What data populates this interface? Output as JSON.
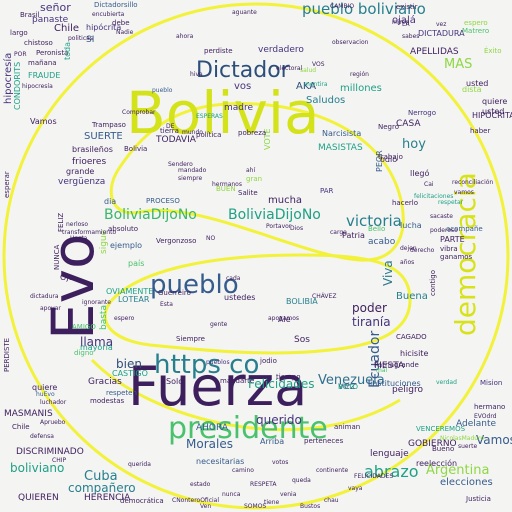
{
  "background_color": "#f4f4f2",
  "outline_color": "#f2f23a",
  "palette": {
    "dark_purple": "#3d1f5e",
    "purple": "#46337e",
    "blue": "#365c8d",
    "teal": "#277f8e",
    "green": "#1fa187",
    "lime": "#4ac16d",
    "yellow": "#d8e219"
  },
  "words": [
    {
      "text": "Bolivia",
      "color": "#d4e21a"
    },
    {
      "text": "Fuerza",
      "color": "#3d1f5e"
    },
    {
      "text": "Evo",
      "color": "#3d1f5e"
    },
    {
      "text": "presidente",
      "color": "#4ac16d"
    },
    {
      "text": "democracia",
      "color": "#d8e219"
    },
    {
      "text": "https co",
      "color": "#277f8e"
    },
    {
      "text": "pueblo",
      "color": "#365c8d"
    },
    {
      "text": "Dictador",
      "color": "#2c4e7a"
    },
    {
      "text": "BoliviaDijoNo",
      "color": "#3ab66d"
    },
    {
      "text": "BoliviaDijoNo",
      "color": "#1fa187"
    },
    {
      "text": "pueblo boliviano",
      "color": "#277f8e"
    },
    {
      "text": "Venezuela",
      "color": "#2e6e8e"
    },
    {
      "text": "Argentina",
      "color": "#8fd744"
    },
    {
      "text": "abrazo",
      "color": "#1fa187"
    },
    {
      "text": "victoria",
      "color": "#277f8e"
    },
    {
      "text": "Ecuador",
      "color": "#365c8d"
    },
    {
      "text": "Cuba",
      "color": "#277f8e"
    },
    {
      "text": "MAS",
      "color": "#8fd744"
    },
    {
      "text": "Vamos",
      "color": "#365c8d"
    },
    {
      "text": "querido",
      "color": "#46337e"
    },
    {
      "text": "boliviano",
      "color": "#1fa187"
    },
    {
      "text": "Morales",
      "color": "#365c8d"
    },
    {
      "text": "Felicidades",
      "color": "#1fa187"
    },
    {
      "text": "compañero",
      "color": "#277f8e"
    },
    {
      "text": "elecciones",
      "color": "#365c8d"
    },
    {
      "text": "tiranía",
      "color": "#46337e"
    },
    {
      "text": "poder",
      "color": "#3d1f5e"
    },
    {
      "text": "hoy",
      "color": "#277f8e"
    },
    {
      "text": "Viva",
      "color": "#2c7a8e"
    },
    {
      "text": "llama",
      "color": "#46337e"
    },
    {
      "text": "bien",
      "color": "#2c4e7a"
    },
    {
      "text": "señor",
      "color": "#46337e"
    },
    {
      "text": "SUERTE",
      "color": "#365c8d"
    },
    {
      "text": "AKA",
      "color": "#2c4e7a"
    },
    {
      "text": "vos",
      "color": "#46337e"
    },
    {
      "text": "mucha",
      "color": "#3d1f5e"
    },
    {
      "text": "Buena",
      "color": "#277f8e"
    },
    {
      "text": "Chile",
      "color": "#3d1f5e"
    },
    {
      "text": "ojalá",
      "color": "#46337e"
    },
    {
      "text": "vez",
      "color": "#365c8d"
    },
    {
      "text": "hipocresía",
      "color": "#46337e"
    },
    {
      "text": "Saludos",
      "color": "#277f8e"
    },
    {
      "text": "millones",
      "color": "#1fa187"
    },
    {
      "text": "APELLIDAS",
      "color": "#3d1f5e"
    },
    {
      "text": "DICTADURA",
      "color": "#46337e"
    },
    {
      "text": "CASA",
      "color": "#3d1f5e"
    },
    {
      "text": "madre",
      "color": "#46337e"
    },
    {
      "text": "verdadero",
      "color": "#46337e"
    },
    {
      "text": "MASISTAS",
      "color": "#1fa187"
    },
    {
      "text": "TODAVIA",
      "color": "#3d1f5e"
    },
    {
      "text": "brasileños",
      "color": "#3d1f5e"
    },
    {
      "text": "vergüenza",
      "color": "#46337e"
    },
    {
      "text": "HERENCIA",
      "color": "#3d1f5e"
    },
    {
      "text": "QUIEREN",
      "color": "#3d1f5e"
    },
    {
      "text": "DISCRIMINADO",
      "color": "#3d1f5e"
    },
    {
      "text": "MASMANIS",
      "color": "#3d1f5e"
    },
    {
      "text": "Gracias",
      "color": "#3d1f5e"
    },
    {
      "text": "mayoría",
      "color": "#1fa187"
    },
    {
      "text": "AHORA",
      "color": "#365c8d"
    },
    {
      "text": "Adelante",
      "color": "#365c8d"
    },
    {
      "text": "FIESTA",
      "color": "#3d1f5e"
    },
    {
      "text": "GOBIERNO",
      "color": "#3d1f5e"
    },
    {
      "text": "lenguaje",
      "color": "#3d1f5e"
    },
    {
      "text": "instituciones",
      "color": "#365c8d"
    },
    {
      "text": "Sos",
      "color": "#3d1f5e"
    },
    {
      "text": "SI",
      "color": "#365c8d"
    },
    {
      "text": "sigue",
      "color": "#8fd744"
    },
    {
      "text": "país",
      "color": "#4ac16d"
    },
    {
      "text": "acabo",
      "color": "#365c8d"
    },
    {
      "text": "lucha",
      "color": "#365c8d"
    },
    {
      "text": "PARTE",
      "color": "#3d1f5e"
    },
    {
      "text": "absoluto",
      "color": "#3d1f5e"
    },
    {
      "text": "ejemplo",
      "color": "#365c8d"
    },
    {
      "text": "política",
      "color": "#3d1f5e"
    },
    {
      "text": "dia",
      "color": "#365c8d"
    },
    {
      "text": "respeten",
      "color": "#365c8d"
    },
    {
      "text": "Patria",
      "color": "#3d1f5e"
    },
    {
      "text": "grande",
      "color": "#3d1f5e"
    },
    {
      "text": "FRAUDE",
      "color": "#1fa187"
    },
    {
      "text": "Brasil",
      "color": "#3d1f5e"
    },
    {
      "text": "VOTE",
      "color": "#8fd744"
    },
    {
      "text": "PEOR",
      "color": "#365c8d"
    },
    {
      "text": "Nerrogo",
      "color": "#46337e"
    },
    {
      "text": "llegó",
      "color": "#3d1f5e"
    },
    {
      "text": "BOLIBIA",
      "color": "#277f8e"
    },
    {
      "text": "usted",
      "color": "#3d1f5e"
    },
    {
      "text": "usted",
      "color": "#3d1f5e"
    },
    {
      "text": "hipócrita",
      "color": "#46337e"
    },
    {
      "text": "Dictadorsillo",
      "color": "#365c8d"
    },
    {
      "text": "existir",
      "color": "#3d1f5e"
    },
    {
      "text": "mentira",
      "color": "#1fa187"
    },
    {
      "text": "pobreza",
      "color": "#3d1f5e"
    },
    {
      "text": "perdiste",
      "color": "#3d1f5e"
    },
    {
      "text": "trabajo",
      "color": "#3d1f5e"
    },
    {
      "text": "Narcisista",
      "color": "#365c8d"
    },
    {
      "text": "región",
      "color": "#3d1f5e"
    },
    {
      "text": "Negro",
      "color": "#3d1f5e"
    },
    {
      "text": "ustedes",
      "color": "#3d1f5e"
    },
    {
      "text": "Guerreiro",
      "color": "#3d1f5e"
    },
    {
      "text": "LOTEAR",
      "color": "#277f8e"
    },
    {
      "text": "OVIAMENTE",
      "color": "#1fa187"
    },
    {
      "text": "CASTIGO",
      "color": "#1fa187"
    },
    {
      "text": "AMIGO",
      "color": "#4ac16d"
    },
    {
      "text": "basta",
      "color": "#4ac16d"
    },
    {
      "text": "Siempre",
      "color": "#3d1f5e"
    },
    {
      "text": "Mision",
      "color": "#46337e"
    },
    {
      "text": "hermano",
      "color": "#3d1f5e"
    },
    {
      "text": "EVOdrd",
      "color": "#3d1f5e"
    },
    {
      "text": "Justicia",
      "color": "#3d1f5e"
    },
    {
      "text": "necesitarias",
      "color": "#365c8d"
    },
    {
      "text": "perteneces",
      "color": "#3d1f5e"
    },
    {
      "text": "animan",
      "color": "#3d1f5e"
    },
    {
      "text": "Arriba",
      "color": "#365c8d"
    },
    {
      "text": "mandarte",
      "color": "#3d1f5e"
    },
    {
      "text": "modestas",
      "color": "#3d1f5e"
    },
    {
      "text": "CONDORITS",
      "color": "#1fa187"
    },
    {
      "text": "Vamos",
      "color": "#3d1f5e"
    },
    {
      "text": "hipocresía",
      "color": "#3d1f5e"
    },
    {
      "text": "Peronista",
      "color": "#3d1f5e"
    },
    {
      "text": "mañana",
      "color": "#3d1f5e"
    },
    {
      "text": "panaste",
      "color": "#46337e"
    },
    {
      "text": "encubierta",
      "color": "#3d1f5e"
    },
    {
      "text": "largo",
      "color": "#3d1f5e"
    },
    {
      "text": "chistoso",
      "color": "#3d1f5e"
    },
    {
      "text": "toda",
      "color": "#1fa187"
    },
    {
      "text": "Trampaso",
      "color": "#3d1f5e"
    },
    {
      "text": "Vergonzoso",
      "color": "#3d1f5e"
    },
    {
      "text": "Sendero",
      "color": "#3d1f5e"
    },
    {
      "text": "mandado",
      "color": "#3d1f5e"
    },
    {
      "text": "siempre",
      "color": "#3d1f5e"
    },
    {
      "text": "PROCESO",
      "color": "#365c8d"
    },
    {
      "text": "BUEN",
      "color": "#8fd744"
    },
    {
      "text": "frioeres",
      "color": "#3d1f5e"
    },
    {
      "text": "gran",
      "color": "#8fd744"
    },
    {
      "text": "Salite",
      "color": "#3d1f5e"
    },
    {
      "text": "PAR",
      "color": "#46337e"
    },
    {
      "text": "hacerlo",
      "color": "#3d1f5e"
    },
    {
      "text": "odio",
      "color": "#3d1f5e"
    },
    {
      "text": "jodio",
      "color": "#3d1f5e"
    },
    {
      "text": "Solo",
      "color": "#3d1f5e"
    },
    {
      "text": "tiempo",
      "color": "#3d1f5e"
    },
    {
      "text": "Ale",
      "color": "#3d1f5e"
    },
    {
      "text": "CAGADO",
      "color": "#3d1f5e"
    },
    {
      "text": "Bello",
      "color": "#4ac16d"
    },
    {
      "text": "Patriagrande",
      "color": "#3d1f5e"
    },
    {
      "text": "hicisite",
      "color": "#3d1f5e"
    },
    {
      "text": "peligro",
      "color": "#3d1f5e"
    },
    {
      "text": "acompañe",
      "color": "#365c8d"
    },
    {
      "text": "vibra",
      "color": "#3d1f5e"
    },
    {
      "text": "ganamos",
      "color": "#3d1f5e"
    },
    {
      "text": "contigo",
      "color": "#3d1f5e"
    },
    {
      "text": "quiere",
      "color": "#3d1f5e"
    },
    {
      "text": "Éxito",
      "color": "#8fd744"
    },
    {
      "text": "espero",
      "color": "#8fd744"
    },
    {
      "text": "haber",
      "color": "#3d1f5e"
    },
    {
      "text": "Matrero",
      "color": "#4ac16d"
    },
    {
      "text": "HIPÓCRITA",
      "color": "#3d1f5e"
    },
    {
      "text": "dista",
      "color": "#8fd744"
    },
    {
      "text": "debe",
      "color": "#3d1f5e"
    },
    {
      "text": "CAMBIO",
      "color": "#3d1f5e"
    },
    {
      "text": "Portavor",
      "color": "#3d1f5e"
    },
    {
      "text": "tierra",
      "color": "#3d1f5e"
    },
    {
      "text": "digno",
      "color": "#4ac16d"
    },
    {
      "text": "apoyamos",
      "color": "#3d1f5e"
    },
    {
      "text": "pueblos",
      "color": "#46337e"
    },
    {
      "text": "pueblo",
      "color": "#365c8d"
    },
    {
      "text": "mundo",
      "color": "#3d1f5e"
    },
    {
      "text": "CHÁVEZ",
      "color": "#3d1f5e"
    },
    {
      "text": "PERDISTE",
      "color": "#3d1f5e"
    },
    {
      "text": "reelección",
      "color": "#3d1f5e"
    },
    {
      "text": "BOTO",
      "color": "#1fa187"
    },
    {
      "text": "vez",
      "color": "#3d1f5e"
    },
    {
      "text": "Chile",
      "color": "#3d1f5e"
    },
    {
      "text": "Dios",
      "color": "#3d1f5e"
    },
    {
      "text": "NO",
      "color": "#3d1f5e"
    },
    {
      "text": "mal",
      "color": "#4ac16d"
    },
    {
      "text": "dejen",
      "color": "#3d1f5e"
    },
    {
      "text": "años",
      "color": "#3d1f5e"
    },
    {
      "text": "quiere",
      "color": "#3d1f5e"
    },
    {
      "text": "huEvo",
      "color": "#365c8d"
    },
    {
      "text": "CHIP",
      "color": "#3d1f5e"
    },
    {
      "text": "luchador",
      "color": "#3d1f5e"
    },
    {
      "text": "Nadie",
      "color": "#3d1f5e"
    },
    {
      "text": "ahora",
      "color": "#3d1f5e"
    },
    {
      "text": "hiva",
      "color": "#3d1f5e"
    },
    {
      "text": "salud",
      "color": "#8fd744"
    },
    {
      "text": "RESPETA",
      "color": "#3d1f5e"
    },
    {
      "text": "venia",
      "color": "#3d1f5e"
    },
    {
      "text": "nunca",
      "color": "#3d1f5e"
    },
    {
      "text": "chau",
      "color": "#3d1f5e"
    },
    {
      "text": "tiene",
      "color": "#3d1f5e"
    },
    {
      "text": "estado",
      "color": "#3d1f5e"
    },
    {
      "text": "queda",
      "color": "#3d1f5e"
    },
    {
      "text": "vaya",
      "color": "#3d1f5e"
    },
    {
      "text": "cada",
      "color": "#3d1f5e"
    },
    {
      "text": "democrática",
      "color": "#3d1f5e"
    },
    {
      "text": "defensa",
      "color": "#3d1f5e"
    },
    {
      "text": "suerte",
      "color": "#3d1f5e"
    },
    {
      "text": "camino",
      "color": "#3d1f5e"
    },
    {
      "text": "continente",
      "color": "#3d1f5e"
    },
    {
      "text": "CNonteroOficial",
      "color": "#3d1f5e"
    },
    {
      "text": "Bustos",
      "color": "#3d1f5e"
    },
    {
      "text": "SOMOS",
      "color": "#3d1f5e"
    },
    {
      "text": "Ven",
      "color": "#3d1f5e"
    },
    {
      "text": "votos",
      "color": "#3d1f5e"
    },
    {
      "text": "FELICIDADES",
      "color": "#3d1f5e"
    },
    {
      "text": "Bueno",
      "color": "#3d1f5e"
    },
    {
      "text": "DE",
      "color": "#3d1f5e"
    },
    {
      "text": "VOS",
      "color": "#3d1f5e"
    },
    {
      "text": "POR",
      "color": "#3d1f5e"
    },
    {
      "text": "LA",
      "color": "#3d1f5e"
    },
    {
      "text": "aguante",
      "color": "#3d1f5e"
    },
    {
      "text": "sabes",
      "color": "#3d1f5e"
    },
    {
      "text": "miren",
      "color": "#3d1f5e"
    },
    {
      "text": "politicas",
      "color": "#3d1f5e"
    },
    {
      "text": "ignorante",
      "color": "#3d1f5e"
    },
    {
      "text": "Bolivia",
      "color": "#3d1f5e"
    },
    {
      "text": "transformamiento",
      "color": "#3d1f5e"
    },
    {
      "text": "Hasta",
      "color": "#3d1f5e"
    },
    {
      "text": "observacion",
      "color": "#3d1f5e"
    },
    {
      "text": "ESPERAS",
      "color": "#1fa187"
    },
    {
      "text": "Apruebo",
      "color": "#3d1f5e"
    },
    {
      "text": "Comprobar",
      "color": "#3d1f5e"
    },
    {
      "text": "VENCEREMOS",
      "color": "#1fa187"
    },
    {
      "text": "NicolasMaduro",
      "color": "#8fd744"
    },
    {
      "text": "hermanos",
      "color": "#3d1f5e"
    },
    {
      "text": "nerloso",
      "color": "#3d1f5e"
    },
    {
      "text": "cargo",
      "color": "#3d1f5e"
    },
    {
      "text": "derecho",
      "color": "#3d1f5e"
    },
    {
      "text": "ahí",
      "color": "#3d1f5e"
    },
    {
      "text": "electoral",
      "color": "#3d1f5e"
    },
    {
      "text": "sacaste",
      "color": "#3d1f5e"
    },
    {
      "text": "respetar",
      "color": "#1fa187"
    },
    {
      "text": "felicitaciones",
      "color": "#1fa187"
    },
    {
      "text": "poderoso",
      "color": "#3d1f5e"
    },
    {
      "text": "Cai",
      "color": "#3d1f5e"
    },
    {
      "text": "reconciliación",
      "color": "#3d1f5e"
    },
    {
      "text": "vamos",
      "color": "#3d1f5e"
    },
    {
      "text": "espero",
      "color": "#3d1f5e"
    },
    {
      "text": "gente",
      "color": "#3d1f5e"
    },
    {
      "text": "Esta",
      "color": "#3d1f5e"
    },
    {
      "text": "FELIZ",
      "color": "#3d1f5e"
    },
    {
      "text": "NUNCA",
      "color": "#3d1f5e"
    },
    {
      "text": "Ojo",
      "color": "#3d1f5e"
    },
    {
      "text": "dictadura",
      "color": "#3d1f5e"
    },
    {
      "text": "apoyar",
      "color": "#3d1f5e"
    },
    {
      "text": "esperar",
      "color": "#3d1f5e"
    },
    {
      "text": "verdad",
      "color": "#1fa187"
    },
    {
      "text": "querida",
      "color": "#3d1f5e"
    },
    {
      "text": "pueblobolivano",
      "color": "#3d1f5e"
    },
    {
      "text": "OK",
      "color": "#3d1f5e"
    },
    {
      "text": "PHI",
      "color": "#3d1f5e"
    },
    {
      "text": "povo",
      "color": "#3d1f5e"
    },
    {
      "text": "Lula",
      "color": "#3d1f5e"
    },
    {
      "text": "ELLOS",
      "color": "#3d1f5e"
    },
    {
      "text": "evoespaña",
      "color": "#1fa187"
    },
    {
      "text": "SomosBolivia",
      "color": "#1fa187"
    },
    {
      "text": "NO",
      "color": "#3d1f5e"
    }
  ]
}
